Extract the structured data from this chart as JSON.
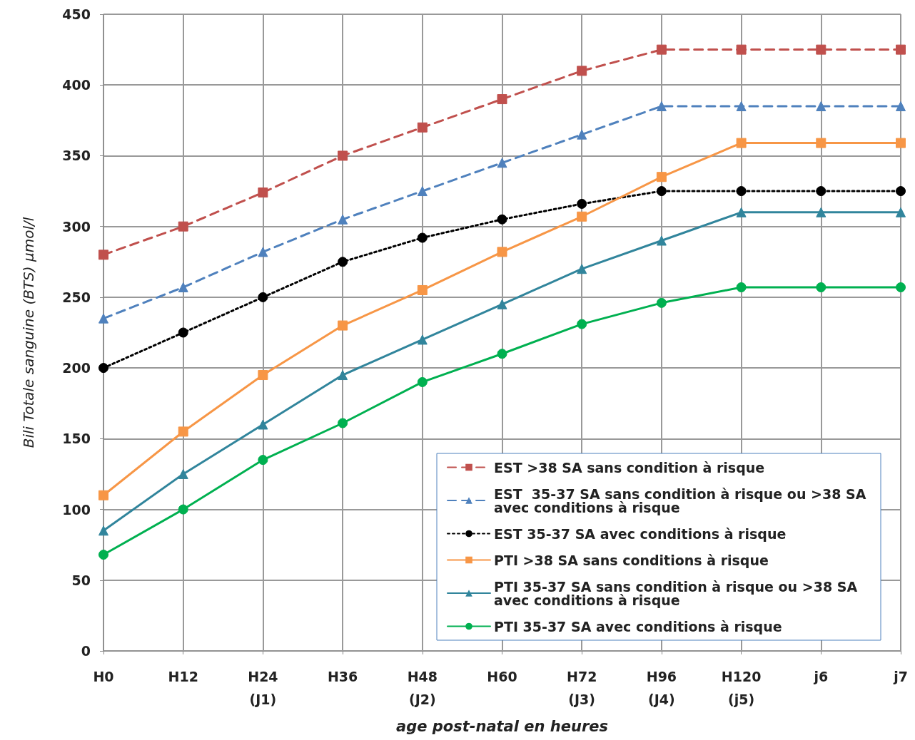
{
  "chart_data": {
    "type": "line",
    "xlabel": "age post-natal en heures",
    "ylabel": "Bili Totale sanguine (BTS) µmol/l",
    "categories": [
      "H0",
      "H12",
      "H24\n(J1)",
      "H36",
      "H48\n(J2)",
      "H60",
      "H72\n(J3)",
      "H96\n(J4)",
      "H120\n(j5)",
      "j6",
      "j7"
    ],
    "ylim": [
      0,
      450
    ],
    "yticks": [
      0,
      50,
      100,
      150,
      200,
      250,
      300,
      350,
      400,
      450
    ],
    "grid": true,
    "legend": "bottom right",
    "series": [
      {
        "name": "EST >38 SA sans condition à risque",
        "color": "#c0504d",
        "line_style": "dashed",
        "marker": "square",
        "values": [
          280,
          300,
          324,
          350,
          370,
          390,
          410,
          425,
          425,
          425,
          425
        ]
      },
      {
        "name": "EST  35-37 SA sans condition à risque ou >38 SA avec conditions à risque",
        "color": "#4f81bd",
        "line_style": "dashed",
        "marker": "triangle",
        "values": [
          235,
          257,
          282,
          305,
          325,
          345,
          365,
          385,
          385,
          385,
          385
        ]
      },
      {
        "name": "EST 35-37 SA avec conditions à risque",
        "color": "#000000",
        "line_style": "dotted",
        "marker": "circle",
        "values": [
          200,
          225,
          250,
          275,
          292,
          305,
          316,
          325,
          325,
          325,
          325
        ]
      },
      {
        "name": "PTI >38 SA sans conditions à risque",
        "color": "#f79646",
        "line_style": "solid",
        "marker": "square",
        "values": [
          110,
          155,
          195,
          230,
          255,
          282,
          307,
          335,
          359,
          359,
          359
        ]
      },
      {
        "name": "PTI 35-37 SA sans condition à risque ou >38 SA avec conditions à risque",
        "color": "#31859c",
        "line_style": "solid",
        "marker": "triangle",
        "values": [
          85,
          125,
          160,
          195,
          220,
          245,
          270,
          290,
          310,
          310,
          310
        ]
      },
      {
        "name": "PTI 35-37 SA avec conditions à risque",
        "color": "#00b050",
        "line_style": "solid",
        "marker": "circle",
        "values": [
          68,
          100,
          135,
          161,
          190,
          210,
          231,
          246,
          257,
          257,
          257
        ]
      }
    ]
  }
}
